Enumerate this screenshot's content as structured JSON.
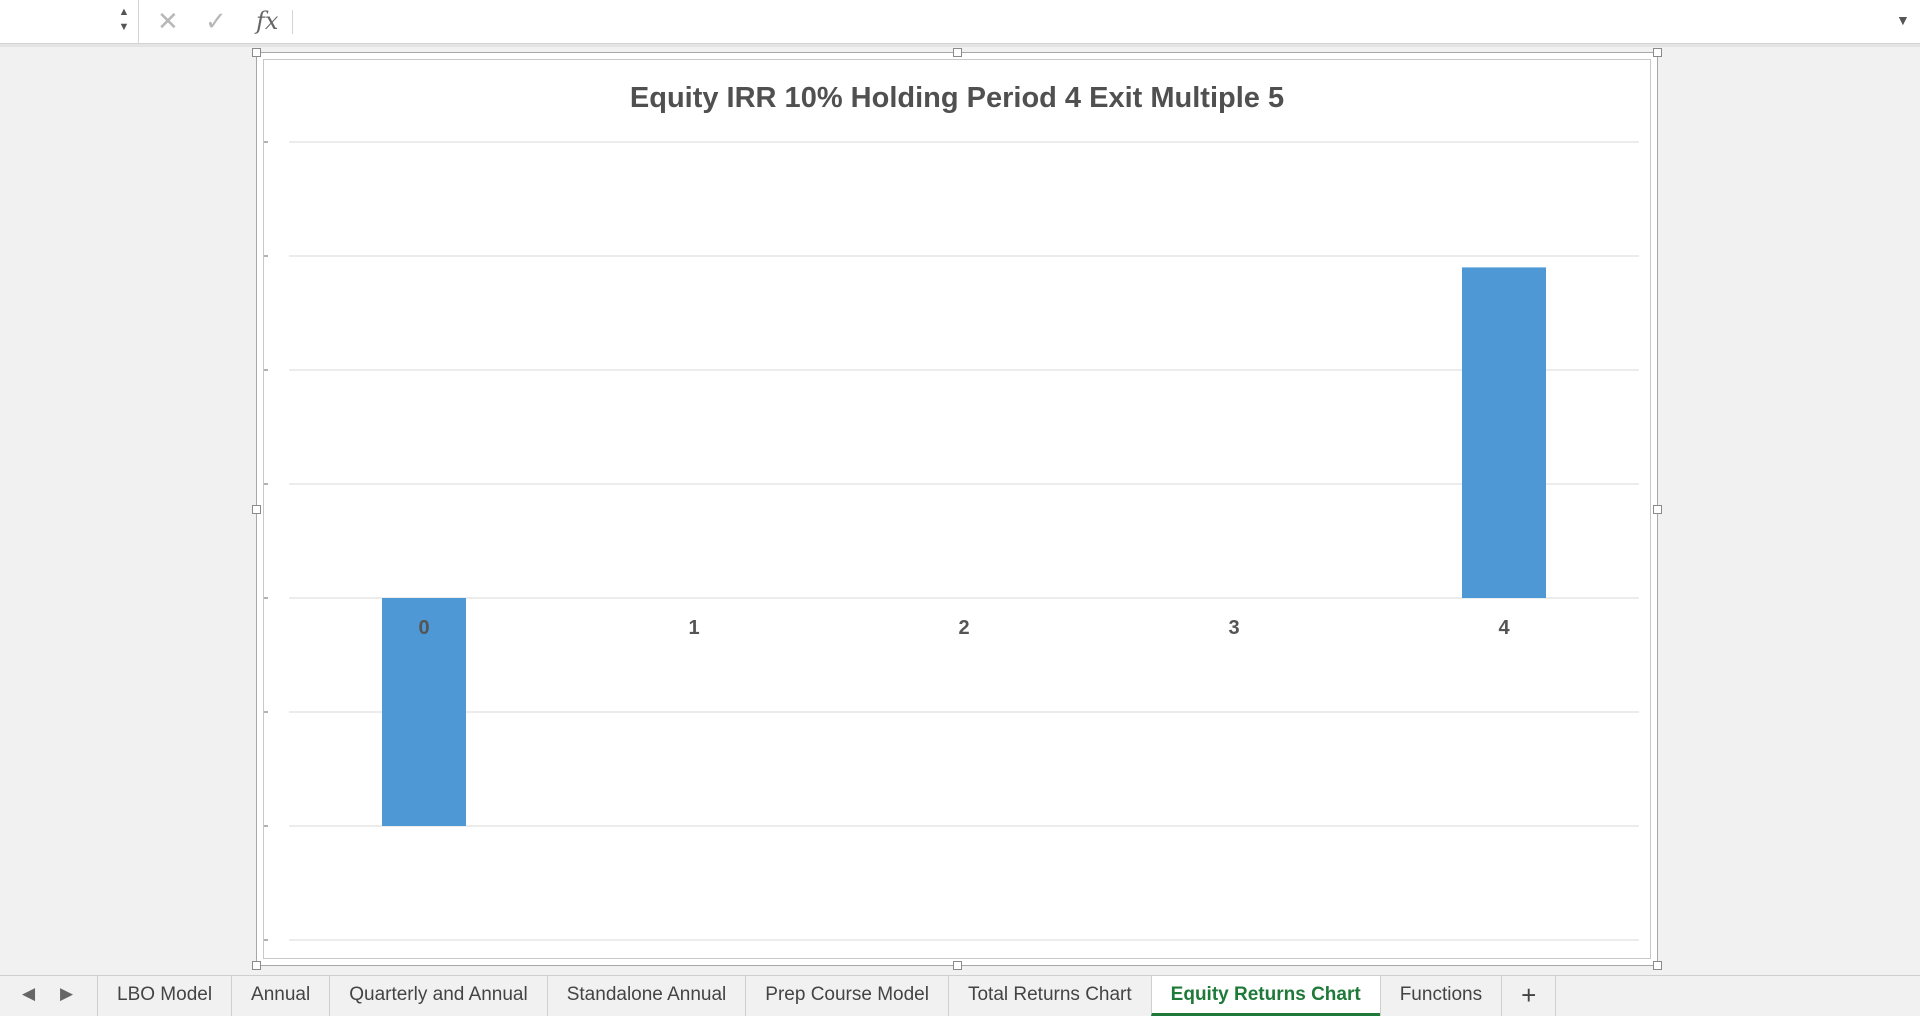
{
  "formula_bar": {
    "name_box_value": "",
    "spin_up": "▲",
    "spin_down": "▼",
    "cancel_glyph": "✕",
    "enter_glyph": "✓",
    "fx_label": "fx",
    "formula_value": "",
    "expand_glyph": "▼"
  },
  "tab_bar": {
    "prev_glyph": "◀",
    "next_glyph": "▶",
    "tabs": [
      "LBO Model",
      "Annual",
      "Quarterly and Annual",
      "Standalone Annual",
      "Prep Course Model",
      "Total Returns Chart",
      "Equity Returns Chart",
      "Functions"
    ],
    "active_tab": "Equity Returns Chart",
    "add_glyph": "+"
  },
  "colors": {
    "bar": "#4e98d6",
    "gridline": "#d9d9d9",
    "active_tab": "#1f7a3a",
    "title": "#505050"
  },
  "chart_data": {
    "type": "bar",
    "title": "Equity IRR 10% Holding Period 4 Exit Multiple 5",
    "categories": [
      "0",
      "1",
      "2",
      "3",
      "4"
    ],
    "values": [
      -2,
      0,
      0,
      0,
      2.9
    ],
    "ylim": [
      -3,
      4
    ],
    "ytick_step": 1,
    "grid": true,
    "legend": "none",
    "xlabel": "",
    "ylabel": ""
  }
}
